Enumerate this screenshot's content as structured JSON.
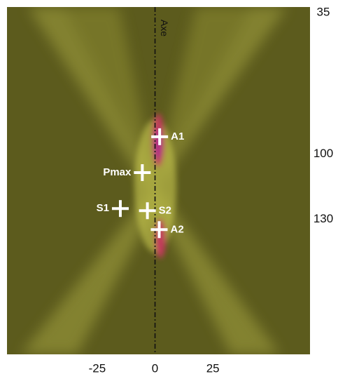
{
  "chart_data": {
    "type": "scatter",
    "xlim": [
      -64,
      67
    ],
    "ylim": [
      32.4,
      192
    ],
    "xticks": [
      -25,
      0,
      25
    ],
    "yticks": [
      35,
      100,
      130
    ],
    "axis_line": {
      "label": "Axe",
      "x": 0
    },
    "point_labels": [
      "A1",
      "Pmax",
      "S1",
      "S2",
      "A2"
    ],
    "x": [
      2,
      -5.5,
      -15,
      -3.3,
      1.8
    ],
    "values": [
      92,
      108.5,
      125,
      126,
      134.7
    ],
    "color": "#ffffff"
  }
}
